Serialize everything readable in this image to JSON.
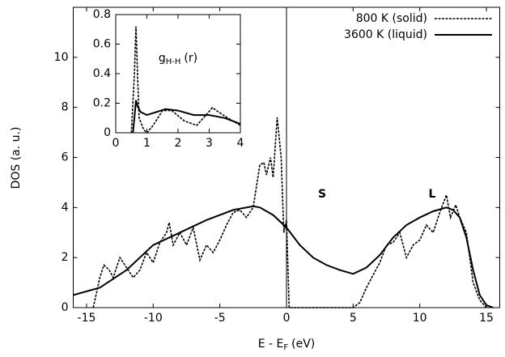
{
  "chart_data": [
    {
      "type": "line",
      "xlabel_main": "E - E",
      "xlabel_sub": "F",
      "xlabel_unit": "(eV)",
      "ylabel": "DOS (a. u.)",
      "xlim": [
        -16,
        16
      ],
      "ylim": [
        0,
        12
      ],
      "xticks": [
        -15,
        -10,
        -5,
        0,
        5,
        10,
        15
      ],
      "yticks": [
        0,
        2,
        4,
        6,
        8,
        10
      ],
      "vline": 0,
      "legend": "upper right",
      "inset_labels": [
        "S",
        "L"
      ],
      "series": [
        {
          "name": "800 K (solid)",
          "color": "#000000",
          "dash": true,
          "x": [
            -14.5,
            -14,
            -13.7,
            -13.3,
            -13,
            -12.5,
            -12,
            -11.5,
            -11,
            -10.5,
            -10,
            -9.5,
            -9,
            -8.8,
            -8.5,
            -8,
            -7.5,
            -7,
            -6.5,
            -6,
            -5.5,
            -5,
            -4.5,
            -4,
            -3.5,
            -3,
            -2.5,
            -2,
            -1.7,
            -1.5,
            -1.2,
            -1,
            -0.7,
            -0.4,
            -0.2,
            0,
            0.2,
            1,
            2,
            3,
            4,
            5,
            5.5,
            6,
            6.5,
            7,
            7.5,
            8,
            8.5,
            9,
            9.5,
            10,
            10.5,
            11,
            11.5,
            12,
            12.3,
            12.7,
            13,
            13.5,
            14,
            14.5,
            15
          ],
          "values": [
            0,
            1.2,
            1.7,
            1.5,
            1.2,
            2.0,
            1.6,
            1.2,
            1.5,
            2.2,
            1.8,
            2.6,
            3.0,
            3.4,
            2.5,
            3.0,
            2.5,
            3.2,
            1.9,
            2.5,
            2.2,
            2.7,
            3.3,
            3.8,
            3.9,
            3.6,
            4.0,
            5.7,
            5.8,
            5.3,
            6.0,
            5.2,
            7.6,
            6.0,
            3.0,
            3.5,
            0,
            0,
            0,
            0,
            0,
            0,
            0.2,
            0.8,
            1.3,
            1.8,
            2.5,
            2.6,
            3.0,
            2.0,
            2.5,
            2.7,
            3.3,
            3.0,
            3.8,
            4.5,
            3.6,
            4.1,
            3.6,
            3.0,
            1.0,
            0.3,
            0
          ]
        },
        {
          "name": "3600 K (liquid)",
          "color": "#000000",
          "dash": false,
          "x": [
            -16,
            -14,
            -12,
            -10,
            -8,
            -6,
            -4,
            -2.5,
            -2,
            -1,
            0,
            1,
            2,
            3,
            4,
            5,
            6,
            7,
            8,
            9,
            10,
            11,
            12,
            12.5,
            13,
            13.5,
            14,
            14.5,
            15,
            15.5
          ],
          "values": [
            0.5,
            0.8,
            1.5,
            2.5,
            3.0,
            3.5,
            3.9,
            4.05,
            4.0,
            3.7,
            3.2,
            2.5,
            2.0,
            1.7,
            1.5,
            1.35,
            1.6,
            2.1,
            2.8,
            3.3,
            3.6,
            3.85,
            4.0,
            3.9,
            3.6,
            2.8,
            1.5,
            0.5,
            0.1,
            0
          ]
        }
      ]
    },
    {
      "type": "line",
      "label_main": "g",
      "label_sub": "H-H",
      "label_unit": "(r)",
      "xlim": [
        0,
        4
      ],
      "ylim": [
        0,
        0.8
      ],
      "xticks": [
        0,
        1,
        2,
        3,
        4
      ],
      "yticks": [
        0,
        0.2,
        0.4,
        0.6,
        0.8
      ],
      "series": [
        {
          "color": "#000000",
          "dash": true,
          "x": [
            0.5,
            0.6,
            0.65,
            0.7,
            0.75,
            0.9,
            1.0,
            1.2,
            1.5,
            1.8,
            2.2,
            2.6,
            2.9,
            3.1,
            3.3,
            3.6,
            4.0
          ],
          "values": [
            0,
            0.4,
            0.72,
            0.4,
            0.1,
            0.02,
            0,
            0.05,
            0.15,
            0.15,
            0.08,
            0.05,
            0.12,
            0.17,
            0.14,
            0.1,
            0.05
          ]
        },
        {
          "color": "#000000",
          "dash": false,
          "x": [
            0.55,
            0.6,
            0.65,
            0.7,
            0.8,
            1.0,
            1.3,
            1.6,
            2.0,
            2.5,
            3.0,
            3.5,
            4.0
          ],
          "values": [
            0,
            0.1,
            0.22,
            0.18,
            0.14,
            0.12,
            0.14,
            0.16,
            0.15,
            0.12,
            0.12,
            0.1,
            0.06
          ]
        }
      ]
    }
  ]
}
